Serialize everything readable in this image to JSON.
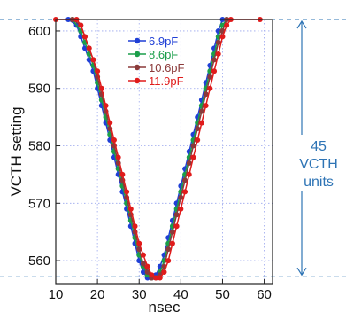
{
  "chart_data": {
    "type": "line",
    "xlabel": "nsec",
    "ylabel": "VCTH setting",
    "xlim": [
      10,
      62
    ],
    "ylim": [
      556,
      602
    ],
    "xticks": [
      10,
      20,
      30,
      40,
      50,
      60
    ],
    "yticks": [
      560,
      570,
      580,
      590,
      600
    ],
    "grid": true,
    "legend_position": "top-left",
    "reference_lines": [
      602,
      557.2
    ],
    "annotation": {
      "lines": [
        "45",
        "VCTH",
        "units"
      ],
      "y_from": 602,
      "y_to": 557.2
    },
    "series": [
      {
        "name": "6.9pF",
        "color": "#1f3fd6",
        "points": [
          [
            13,
            602
          ],
          [
            15,
            601
          ],
          [
            16,
            599
          ],
          [
            17,
            597
          ],
          [
            18,
            595
          ],
          [
            19,
            593
          ],
          [
            20,
            590
          ],
          [
            21,
            587
          ],
          [
            22,
            584
          ],
          [
            23,
            581
          ],
          [
            24,
            578
          ],
          [
            25,
            575
          ],
          [
            26,
            572
          ],
          [
            27,
            569
          ],
          [
            28,
            566
          ],
          [
            29,
            563
          ],
          [
            30,
            560
          ],
          [
            31,
            558
          ],
          [
            32,
            557
          ],
          [
            33,
            557
          ],
          [
            34,
            557.5
          ],
          [
            35,
            559
          ],
          [
            36,
            561
          ],
          [
            37,
            564
          ],
          [
            38,
            567
          ],
          [
            39,
            570
          ],
          [
            40,
            573
          ],
          [
            41,
            576
          ],
          [
            42,
            579
          ],
          [
            43,
            582
          ],
          [
            44,
            585
          ],
          [
            45,
            588
          ],
          [
            46,
            591
          ],
          [
            47,
            594
          ],
          [
            48,
            597
          ],
          [
            49,
            600
          ],
          [
            50,
            602
          ]
        ]
      },
      {
        "name": "8.6pF",
        "color": "#1a9e4a",
        "points": [
          [
            14,
            602
          ],
          [
            16,
            600
          ],
          [
            17,
            598
          ],
          [
            18,
            596
          ],
          [
            19,
            594
          ],
          [
            20,
            591
          ],
          [
            21,
            588
          ],
          [
            22,
            585
          ],
          [
            23,
            582
          ],
          [
            24,
            579
          ],
          [
            25,
            576
          ],
          [
            26,
            573
          ],
          [
            27,
            570
          ],
          [
            28,
            567
          ],
          [
            29,
            564
          ],
          [
            30,
            561
          ],
          [
            31,
            559
          ],
          [
            32,
            557.5
          ],
          [
            33,
            557
          ],
          [
            34,
            557
          ],
          [
            35,
            558
          ],
          [
            36,
            560
          ],
          [
            37,
            563
          ],
          [
            38,
            566
          ],
          [
            39,
            569
          ],
          [
            40,
            572
          ],
          [
            41,
            575
          ],
          [
            42,
            578
          ],
          [
            43,
            581
          ],
          [
            44,
            584
          ],
          [
            45,
            587
          ],
          [
            46,
            590
          ],
          [
            47,
            593
          ],
          [
            48,
            596
          ],
          [
            49,
            599
          ],
          [
            50,
            601
          ],
          [
            51,
            602
          ]
        ]
      },
      {
        "name": "10.6pF",
        "color": "#8b3a3a",
        "points": [
          [
            14,
            602
          ],
          [
            16,
            601
          ],
          [
            17,
            599
          ],
          [
            18,
            597
          ],
          [
            19,
            595
          ],
          [
            20,
            592
          ],
          [
            21,
            589
          ],
          [
            22,
            586
          ],
          [
            23,
            583
          ],
          [
            24,
            580
          ],
          [
            25,
            577
          ],
          [
            26,
            574
          ],
          [
            27,
            571
          ],
          [
            28,
            568
          ],
          [
            29,
            565
          ],
          [
            30,
            562
          ],
          [
            31,
            559.5
          ],
          [
            32,
            558
          ],
          [
            33,
            557
          ],
          [
            34,
            557
          ],
          [
            35,
            557.5
          ],
          [
            36,
            559
          ],
          [
            37,
            562
          ],
          [
            38,
            565
          ],
          [
            39,
            568
          ],
          [
            40,
            571
          ],
          [
            41,
            574
          ],
          [
            42,
            577
          ],
          [
            43,
            580
          ],
          [
            44,
            583
          ],
          [
            45,
            586
          ],
          [
            46,
            589
          ],
          [
            47,
            592
          ],
          [
            48,
            595
          ],
          [
            49,
            598
          ],
          [
            50,
            600
          ],
          [
            51,
            602
          ]
        ]
      },
      {
        "name": "11.9pF",
        "color": "#e01b1b",
        "points": [
          [
            10,
            602
          ],
          [
            15,
            602
          ],
          [
            16,
            601
          ],
          [
            17,
            599
          ],
          [
            18,
            597
          ],
          [
            19,
            595
          ],
          [
            20,
            593
          ],
          [
            21,
            590
          ],
          [
            22,
            587
          ],
          [
            23,
            584
          ],
          [
            24,
            581
          ],
          [
            25,
            578
          ],
          [
            26,
            575
          ],
          [
            27,
            572
          ],
          [
            28,
            569
          ],
          [
            29,
            566
          ],
          [
            30,
            563
          ],
          [
            31,
            561
          ],
          [
            32,
            559
          ],
          [
            33,
            557.5
          ],
          [
            34,
            557
          ],
          [
            35,
            557
          ],
          [
            36,
            558
          ],
          [
            37,
            560
          ],
          [
            38,
            563
          ],
          [
            39,
            566
          ],
          [
            40,
            569
          ],
          [
            41,
            572
          ],
          [
            42,
            575
          ],
          [
            43,
            578
          ],
          [
            44,
            581
          ],
          [
            45,
            584
          ],
          [
            46,
            587
          ],
          [
            47,
            590
          ],
          [
            48,
            593
          ],
          [
            49,
            596
          ],
          [
            50,
            599
          ],
          [
            51,
            601
          ],
          [
            52,
            602
          ],
          [
            59,
            602
          ]
        ]
      }
    ]
  }
}
